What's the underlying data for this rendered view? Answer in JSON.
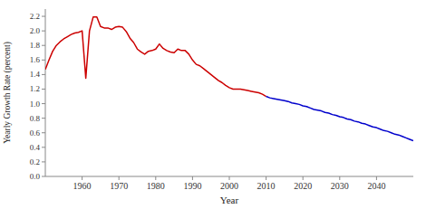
{
  "chart_data": {
    "type": "line",
    "xlabel": "Year",
    "ylabel": "Yearly Growth Rate (percent)",
    "xlim": [
      1950,
      2050
    ],
    "ylim": [
      0,
      2.3
    ],
    "xticks": [
      1960,
      1970,
      1980,
      1990,
      2000,
      2010,
      2020,
      2030,
      2040
    ],
    "yticks": [
      {
        "value": 0,
        "label": "0.0"
      },
      0.2,
      0.4,
      0.6,
      0.8,
      {
        "value": 1.0,
        "label": "1.0"
      },
      1.2,
      1.4,
      1.6,
      1.8,
      {
        "value": 2.0,
        "label": "2.0"
      },
      2.2
    ],
    "grid": false,
    "series": [
      {
        "color": "#cc0000",
        "x": [
          1950,
          1951,
          1952,
          1953,
          1954,
          1955,
          1956,
          1957,
          1958,
          1959,
          1960,
          1961,
          1962,
          1963,
          1964,
          1965,
          1966,
          1967,
          1968,
          1969,
          1970,
          1971,
          1972,
          1973,
          1974,
          1975,
          1976,
          1977,
          1978,
          1979,
          1980,
          1981,
          1982,
          1983,
          1984,
          1985,
          1986,
          1987,
          1988,
          1989,
          1990,
          1991,
          1992,
          1993,
          1994,
          1995,
          1996,
          1997,
          1998,
          1999,
          2000,
          2001,
          2002,
          2003,
          2004,
          2005,
          2006,
          2007,
          2008,
          2009,
          2010
        ],
        "values": [
          1.47,
          1.6,
          1.72,
          1.8,
          1.85,
          1.89,
          1.92,
          1.95,
          1.97,
          1.98,
          2.0,
          1.35,
          2.0,
          2.19,
          2.19,
          2.06,
          2.04,
          2.04,
          2.02,
          2.05,
          2.06,
          2.05,
          1.99,
          1.9,
          1.84,
          1.75,
          1.71,
          1.68,
          1.72,
          1.73,
          1.75,
          1.82,
          1.76,
          1.73,
          1.71,
          1.7,
          1.75,
          1.73,
          1.73,
          1.68,
          1.6,
          1.54,
          1.52,
          1.48,
          1.44,
          1.4,
          1.36,
          1.32,
          1.29,
          1.25,
          1.22,
          1.2,
          1.2,
          1.2,
          1.19,
          1.18,
          1.17,
          1.16,
          1.15,
          1.13,
          1.1
        ]
      },
      {
        "color": "#0000cc",
        "x": [
          2010,
          2011,
          2012,
          2013,
          2014,
          2015,
          2016,
          2017,
          2018,
          2019,
          2020,
          2021,
          2022,
          2023,
          2024,
          2025,
          2026,
          2027,
          2028,
          2029,
          2030,
          2031,
          2032,
          2033,
          2034,
          2035,
          2036,
          2037,
          2038,
          2039,
          2040,
          2041,
          2042,
          2043,
          2044,
          2045,
          2046,
          2047,
          2048,
          2049,
          2050
        ],
        "values": [
          1.1,
          1.08,
          1.07,
          1.06,
          1.05,
          1.04,
          1.03,
          1.01,
          1.0,
          0.99,
          0.97,
          0.96,
          0.94,
          0.92,
          0.91,
          0.9,
          0.88,
          0.87,
          0.85,
          0.84,
          0.82,
          0.81,
          0.79,
          0.78,
          0.76,
          0.75,
          0.73,
          0.72,
          0.7,
          0.68,
          0.67,
          0.65,
          0.63,
          0.62,
          0.6,
          0.58,
          0.57,
          0.55,
          0.53,
          0.51,
          0.49
        ]
      }
    ]
  }
}
